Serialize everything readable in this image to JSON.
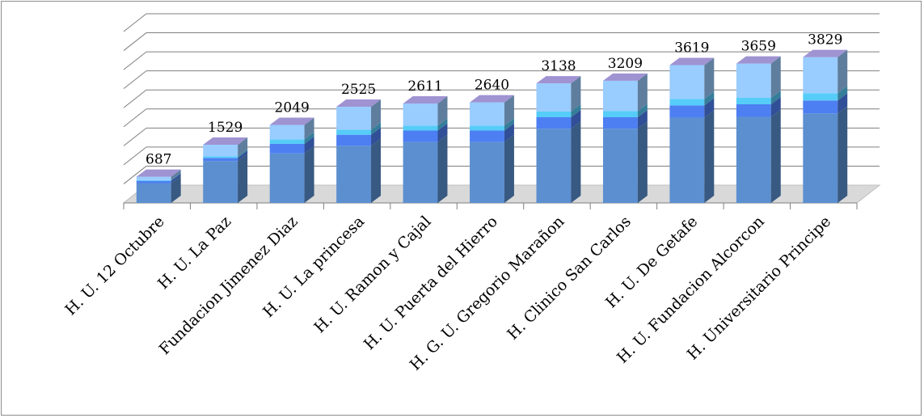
{
  "chart_data": {
    "type": "bar",
    "stacked": true,
    "three_d": true,
    "categories": [
      "H. U. 12 Octubre",
      "H. U. La Paz",
      "Fundacion Jimenez Diaz",
      "H. U. La princesa",
      "H. U. Ramon y Cajal",
      "H. U. Puerta del Hierro",
      "H. G. U. Gregorio Marañon",
      "H. Clinico San Carlos",
      "H. U. De Getafe",
      "H. U. Fundacion Alcorcon",
      "H. Universitario Principe"
    ],
    "totals": [
      687,
      1529,
      2049,
      2525,
      2611,
      2640,
      3138,
      3209,
      3619,
      3659,
      3829
    ],
    "series": [
      {
        "color": "#5b8fd0",
        "values": [
          520,
          1100,
          1300,
          1500,
          1600,
          1600,
          1950,
          1950,
          2240,
          2260,
          2350
        ]
      },
      {
        "color": "#4d7ff2",
        "values": [
          60,
          80,
          250,
          290,
          300,
          300,
          300,
          300,
          320,
          330,
          340
        ]
      },
      {
        "color": "#56ccf8",
        "values": [
          20,
          40,
          120,
          130,
          130,
          130,
          150,
          160,
          170,
          170,
          190
        ]
      },
      {
        "color": "#99ccff",
        "values": [
          87,
          309,
          379,
          605,
          581,
          610,
          738,
          799,
          889,
          899,
          949
        ]
      }
    ],
    "ylim": [
      0,
      4500
    ],
    "grid": true,
    "legend": "none"
  }
}
